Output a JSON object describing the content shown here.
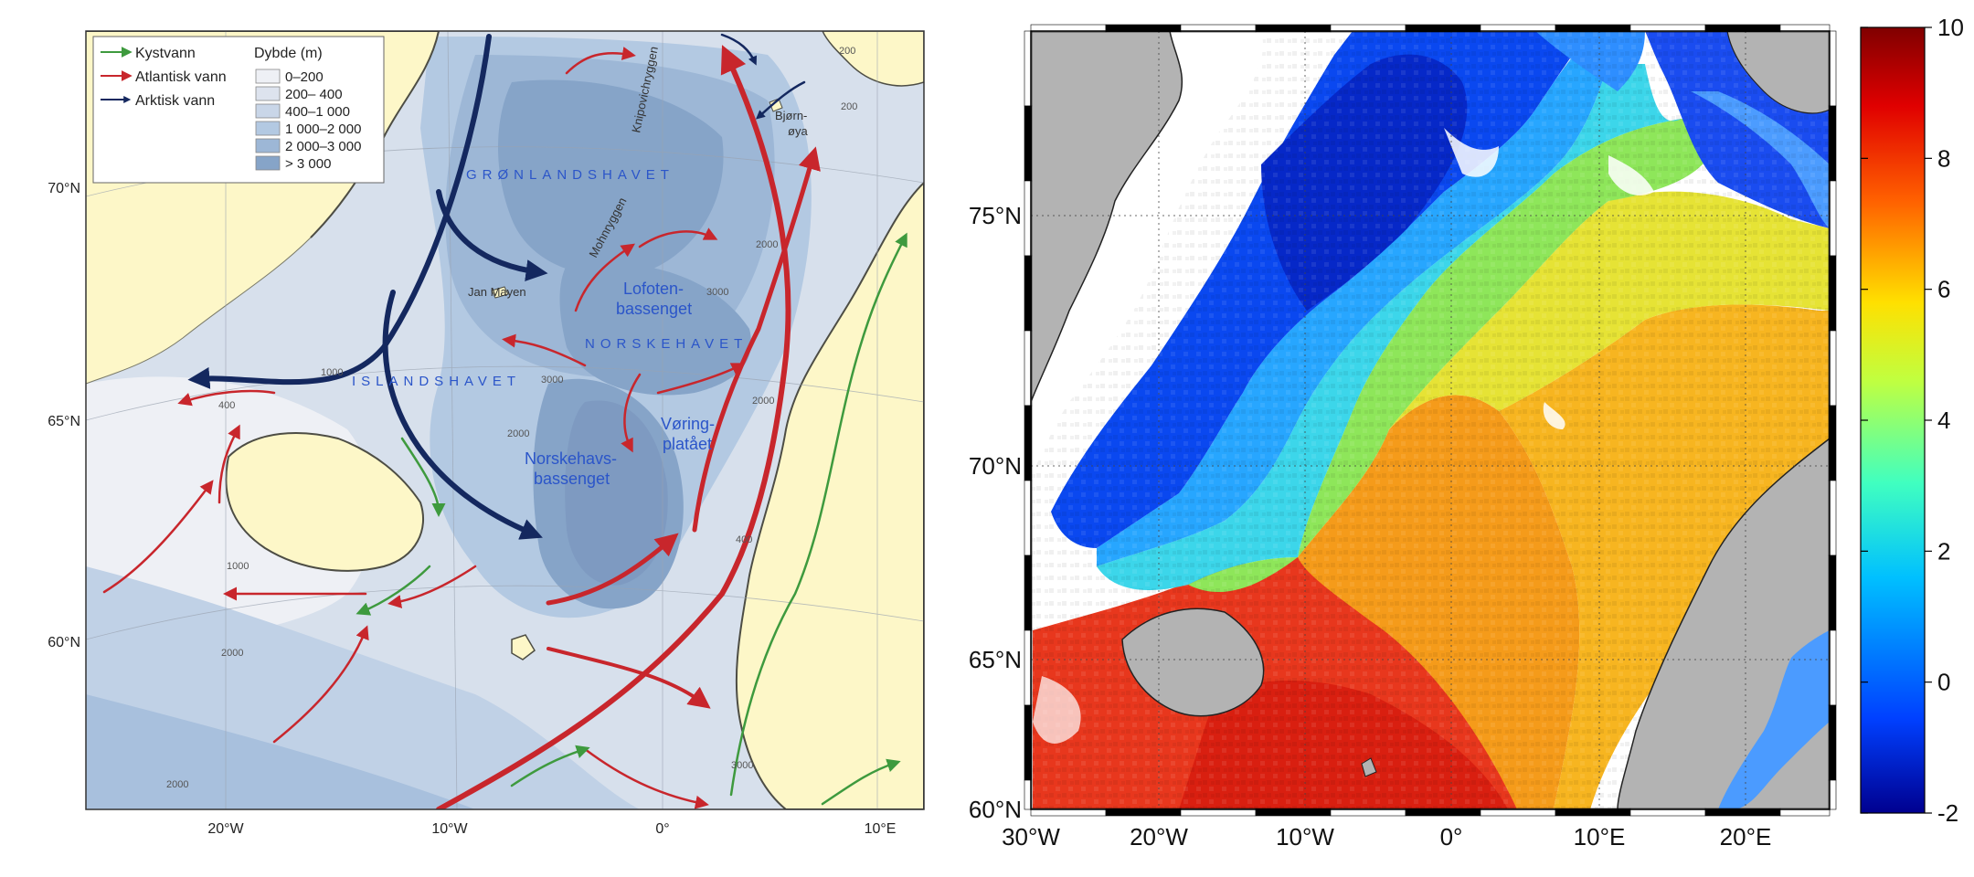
{
  "left_map": {
    "legend": {
      "currents": [
        {
          "label": "Kystvann",
          "color": "#3e9a3e"
        },
        {
          "label": "Atlantisk vann",
          "color": "#c8262c"
        },
        {
          "label": "Arktisk vann",
          "color": "#14285f"
        }
      ],
      "depth_title": "Dybde (m)",
      "depth_classes": [
        {
          "label": "0–200",
          "color": "#eef0f5"
        },
        {
          "label": "200– 400",
          "color": "#dde3ee"
        },
        {
          "label": "400–1 000",
          "color": "#c9d6e8"
        },
        {
          "label": "1 000–2 000",
          "color": "#b3c9e2"
        },
        {
          "label": "2 000–3 000",
          "color": "#9db7d6"
        },
        {
          "label": "> 3 000",
          "color": "#86a4c8"
        }
      ]
    },
    "region_labels": {
      "gronlandshavet": "GRØNLANDSHAVET",
      "norskehavet": "NORSKEHAVET",
      "islandshavet": "ISLANDSHAVET",
      "lofoten": "Lofoten-\nbassenget",
      "norskehavsbassenget": "Norskehavs-\nbassenget",
      "voringplataet": "Vøring-\nplatået",
      "jan_mayen": "Jan Mayen",
      "mohnryggen": "Mohnryggen",
      "knipovichryggen": "Knipovichryggen",
      "bjornoya": "Bjørn-\nøya"
    },
    "depth_numbers": [
      "200",
      "2000",
      "3000",
      "2000",
      "1000",
      "400",
      "3000",
      "2000",
      "2000",
      "400",
      "1000",
      "2000",
      "3000",
      "200"
    ],
    "lat_labels": [
      "70°N",
      "65°N",
      "60°N"
    ],
    "lon_labels": [
      "20°W",
      "10°W",
      "0°",
      "10°E"
    ]
  },
  "right_map": {
    "lat_labels": [
      "75°N",
      "70°N",
      "65°N",
      "60°N"
    ],
    "lon_labels": [
      "30°W",
      "20°W",
      "10°W",
      "0°",
      "10°E",
      "20°E"
    ],
    "colorbar": {
      "ticks": [
        "10",
        "8",
        "6",
        "4",
        "2",
        "0",
        "-2"
      ],
      "min": -2,
      "max": 10
    }
  }
}
